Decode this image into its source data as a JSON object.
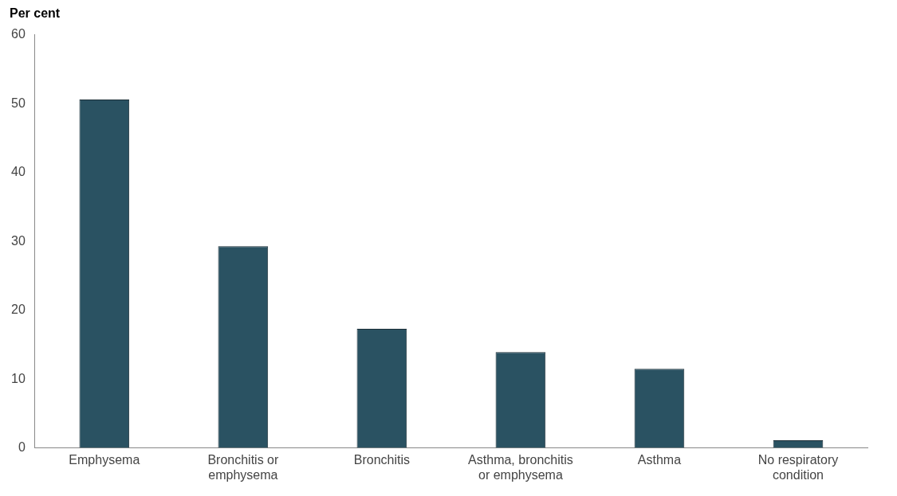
{
  "chart_data": {
    "type": "bar",
    "ylabel": "Per cent",
    "categories": [
      "Emphysema",
      "Bronchitis or emphysema",
      "Bronchitis",
      "Asthma, bronchitis or emphysema",
      "Asthma",
      "No respiratory condition"
    ],
    "values": [
      50.6,
      29.3,
      17.3,
      13.9,
      11.5,
      1.1
    ],
    "color": "#2a5262",
    "ylim": [
      0,
      60
    ],
    "yticks": [
      0,
      10,
      20,
      30,
      40,
      50,
      60
    ],
    "grid": false,
    "legend": false
  }
}
